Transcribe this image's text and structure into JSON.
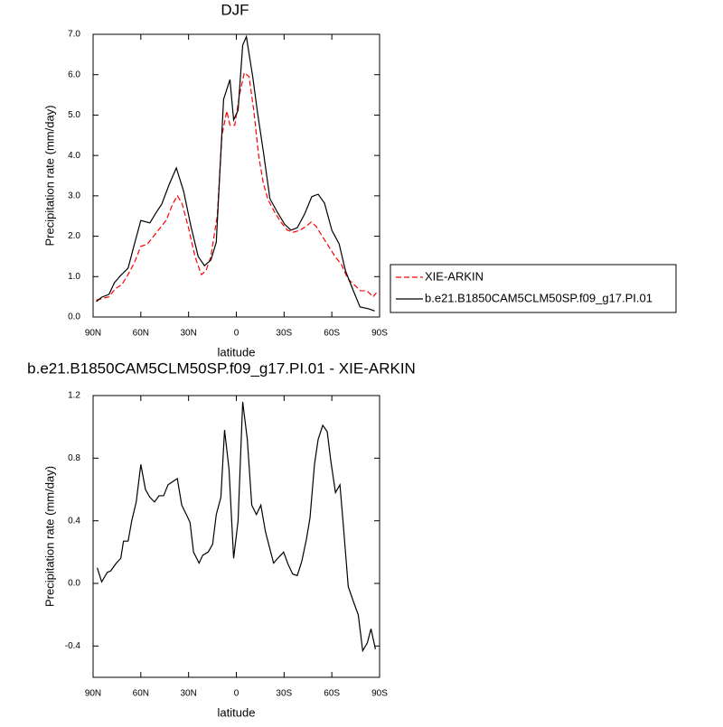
{
  "chart_data": [
    {
      "type": "line",
      "title": "DJF",
      "x_label": "latitude",
      "y_label": "Precipitation rate (mm/day)",
      "xlim": [
        90,
        -90
      ],
      "ylim": [
        0,
        7
      ],
      "xticks": [
        {
          "value": 90,
          "label": "90N"
        },
        {
          "value": 60,
          "label": "60N"
        },
        {
          "value": 30,
          "label": "30N"
        },
        0,
        {
          "value": -30,
          "label": "30S"
        },
        {
          "value": -60,
          "label": "60S"
        },
        {
          "value": -90,
          "label": "90S"
        }
      ],
      "yticks": [
        {
          "value": 0,
          "label": "0.0"
        },
        {
          "value": 1,
          "label": "1.0"
        },
        {
          "value": 2,
          "label": "2.0"
        },
        {
          "value": 3,
          "label": "3.0"
        },
        {
          "value": 4,
          "label": "4.0"
        },
        {
          "value": 5,
          "label": "5.0"
        },
        {
          "value": 6,
          "label": "6.0"
        },
        {
          "value": 7,
          "label": "7.0"
        }
      ],
      "legend": "right",
      "series": [
        {
          "name": "XIE-ARKIN",
          "color": "#ff0000",
          "line_style": "dashed",
          "x": [
            88,
            85,
            80,
            76,
            72,
            68,
            64,
            60,
            56,
            52,
            48,
            44,
            40,
            37,
            34,
            30,
            26,
            22,
            19,
            16,
            12,
            9,
            6,
            4,
            1,
            -2,
            -5,
            -8,
            -11,
            -14,
            -17,
            -20,
            -24,
            -28,
            -32,
            -36,
            -40,
            -44,
            -47,
            -50,
            -54,
            -58,
            -62,
            -66,
            -70,
            -74,
            -78,
            -82,
            -86,
            -88
          ],
          "values": [
            0.42,
            0.45,
            0.5,
            0.7,
            0.8,
            1.05,
            1.35,
            1.75,
            1.8,
            2.0,
            2.2,
            2.4,
            2.8,
            3.0,
            2.8,
            2.2,
            1.5,
            1.05,
            1.15,
            1.5,
            2.5,
            4.5,
            5.1,
            4.75,
            4.75,
            5.5,
            6.05,
            5.95,
            5.1,
            4.0,
            3.3,
            2.9,
            2.6,
            2.35,
            2.15,
            2.1,
            2.15,
            2.25,
            2.35,
            2.25,
            2.0,
            1.75,
            1.5,
            1.3,
            0.95,
            0.8,
            0.65,
            0.65,
            0.5,
            0.6
          ]
        },
        {
          "name": "b.e21.B1850CAM5CLM50SP.f09_g17.PI.01",
          "color": "#000000",
          "line_style": "solid",
          "x": [
            88.0,
            84.6,
            80.0,
            76.6,
            72.6,
            68.0,
            64.0,
            60.0,
            54.3,
            50.3,
            46.9,
            42.3,
            37.7,
            33.1,
            28.6,
            24.0,
            20.0,
            16.0,
            12.6,
            8.0,
            4.0,
            1.7,
            -1.1,
            -4.0,
            -6.3,
            -10.3,
            -13.1,
            -17.1,
            -21.1,
            -25.7,
            -30.3,
            -34.3,
            -38.3,
            -42.9,
            -47.4,
            -51.4,
            -55.4,
            -60.0,
            -64.6,
            -68.6,
            -73.1,
            -77.7,
            -83.4,
            -86.9
          ],
          "values": [
            0.38,
            0.49,
            0.56,
            0.85,
            1.03,
            1.21,
            1.81,
            2.39,
            2.33,
            2.59,
            2.79,
            3.27,
            3.69,
            3.11,
            2.26,
            1.5,
            1.27,
            1.41,
            1.85,
            5.39,
            5.88,
            4.88,
            5.12,
            6.73,
            6.94,
            5.95,
            5.12,
            4.06,
            2.93,
            2.6,
            2.3,
            2.15,
            2.21,
            2.55,
            2.98,
            3.04,
            2.82,
            2.15,
            1.81,
            1.14,
            0.69,
            0.25,
            0.2,
            0.15
          ]
        }
      ]
    },
    {
      "type": "line",
      "title": "b.e21.B1850CAM5CLM50SP.f09_g17.PI.01 - XIE-ARKIN",
      "x_label": "latitude",
      "y_label": "Precipitation rate (mm/day)",
      "xlim": [
        90,
        -90
      ],
      "ylim": [
        -0.6,
        1.2
      ],
      "xticks": [
        {
          "value": 90,
          "label": "90N"
        },
        {
          "value": 60,
          "label": "60N"
        },
        {
          "value": 30,
          "label": "30N"
        },
        0,
        {
          "value": -30,
          "label": "30S"
        },
        {
          "value": -60,
          "label": "60S"
        },
        {
          "value": -90,
          "label": "90S"
        }
      ],
      "yticks": [
        -0.4,
        {
          "value": 0,
          "label": "0.0"
        },
        0.4,
        0.8,
        1.2
      ],
      "series": [
        {
          "color": "#000000",
          "line_style": "solid",
          "x": [
            87.4,
            84.6,
            81.1,
            78.9,
            75.4,
            72.6,
            70.9,
            68.0,
            65.7,
            62.9,
            60.0,
            57.1,
            54.3,
            51.4,
            48.6,
            45.7,
            42.9,
            40.0,
            37.1,
            34.3,
            31.4,
            29.1,
            26.9,
            23.4,
            21.1,
            17.7,
            14.9,
            12.6,
            9.7,
            7.4,
            4.6,
            1.7,
            -1.1,
            -4.0,
            -6.9,
            -9.7,
            -12.6,
            -15.4,
            -18.3,
            -21.1,
            -23.4,
            -26.9,
            -29.7,
            -32.6,
            -35.4,
            -38.3,
            -41.1,
            -44.0,
            -46.3,
            -49.1,
            -51.4,
            -54.3,
            -57.1,
            -59.4,
            -62.3,
            -65.1,
            -67.4,
            -70.3,
            -73.7,
            -76.6,
            -79.4,
            -82.3,
            -84.6,
            -87.4
          ],
          "values": [
            0.1,
            0.01,
            0.07,
            0.08,
            0.13,
            0.16,
            0.27,
            0.27,
            0.4,
            0.52,
            0.76,
            0.6,
            0.55,
            0.52,
            0.56,
            0.56,
            0.63,
            0.65,
            0.67,
            0.5,
            0.44,
            0.39,
            0.2,
            0.13,
            0.18,
            0.2,
            0.25,
            0.44,
            0.55,
            0.98,
            0.73,
            0.16,
            0.4,
            1.16,
            0.92,
            0.5,
            0.44,
            0.5,
            0.33,
            0.22,
            0.13,
            0.17,
            0.2,
            0.12,
            0.06,
            0.05,
            0.14,
            0.28,
            0.42,
            0.76,
            0.92,
            1.01,
            0.97,
            0.78,
            0.58,
            0.63,
            0.35,
            -0.02,
            -0.12,
            -0.2,
            -0.43,
            -0.38,
            -0.29,
            -0.42
          ]
        }
      ]
    }
  ]
}
